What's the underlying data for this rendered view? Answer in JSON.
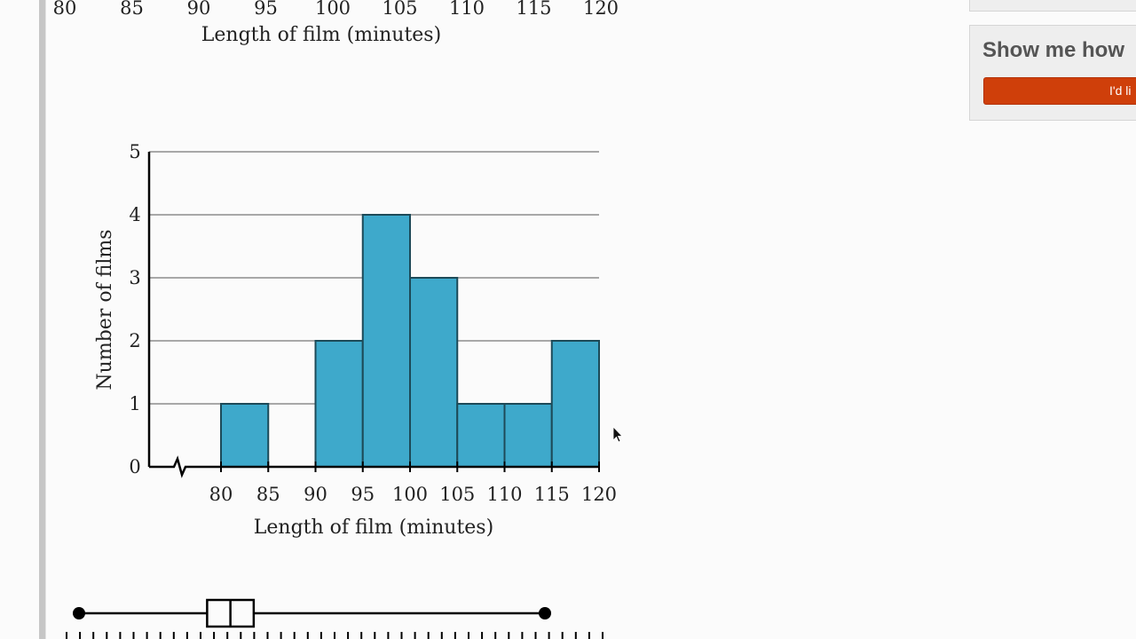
{
  "top_chart_fragment": {
    "tick_labels": [
      "80",
      "85",
      "90",
      "95",
      "100",
      "105",
      "110",
      "115",
      "120"
    ],
    "xlabel": "Length of film (minutes)"
  },
  "chart_data": [
    {
      "type": "bar",
      "title": "",
      "xlabel": "Length of film (minutes)",
      "ylabel": "Number of films",
      "bins": [
        [
          80,
          85
        ],
        [
          85,
          90
        ],
        [
          90,
          95
        ],
        [
          95,
          100
        ],
        [
          100,
          105
        ],
        [
          105,
          110
        ],
        [
          110,
          115
        ],
        [
          115,
          120
        ]
      ],
      "values": [
        1,
        0,
        2,
        4,
        3,
        1,
        1,
        2
      ],
      "x_ticks": [
        "80",
        "85",
        "90",
        "95",
        "100",
        "105",
        "110",
        "115",
        "120"
      ],
      "y_ticks": [
        "0",
        "1",
        "2",
        "3",
        "4",
        "5"
      ],
      "xlim": [
        80,
        120
      ],
      "ylim": [
        0,
        5
      ],
      "axis_break": true,
      "grid": true,
      "bar_color": "#3ea9cb"
    },
    {
      "type": "box",
      "min": 80,
      "q1": 91,
      "median": 93,
      "q3": 95,
      "max": 120
    }
  ],
  "side_panel": {
    "heading": "Show me how",
    "button_label": "I'd li",
    "button_color": "#cf3f0a"
  },
  "cursor": "arrow-cursor"
}
